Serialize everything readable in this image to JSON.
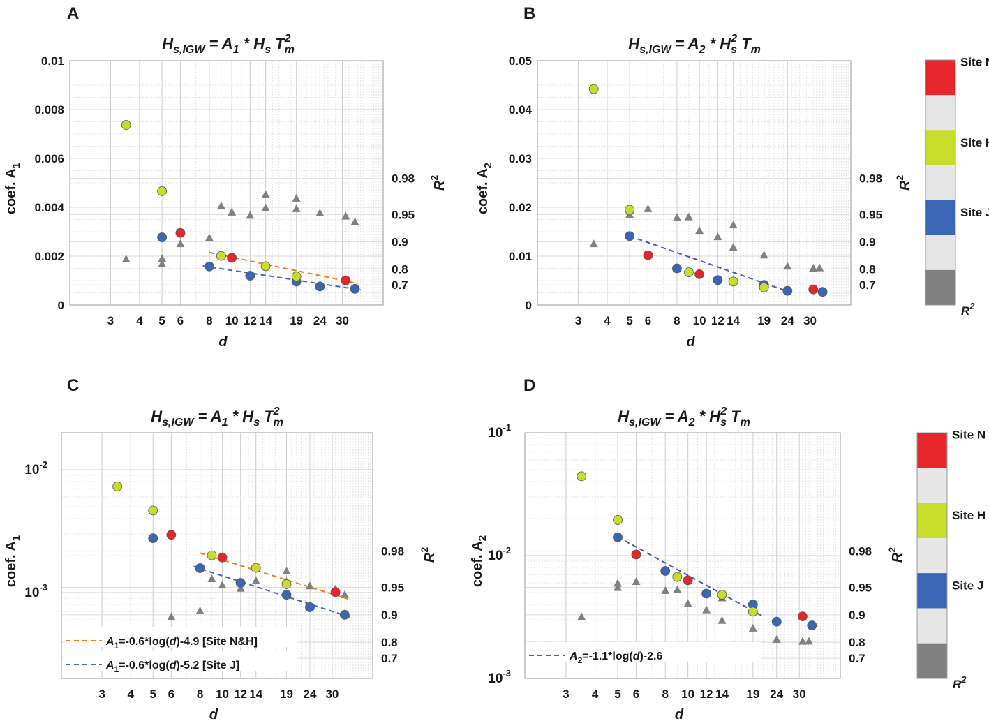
{
  "colors": {
    "site_n": "#e6262b",
    "site_h": "#c8dc2a",
    "site_j": "#3a66b5",
    "r2": "#808080",
    "fit_nh": "#f07d1a",
    "fit_j": "#4a62b8",
    "fit_d": "#5050b0",
    "cb_gap": "#e6e6e6"
  },
  "colorbar": {
    "labels": [
      "Site N",
      "Site H",
      "Site J"
    ],
    "r2_label": "R",
    "r2_sup": "2"
  },
  "chart_data": [
    {
      "id": "A",
      "letter": "A",
      "type": "scatter",
      "title": {
        "lhs": "H",
        "lhs_sub": "s,IGW",
        "eq": " = A",
        "eq_sub": "1",
        "rhs": " * H",
        "rhs_sub": "s",
        "rhs2": " T",
        "rhs2_sup": "2",
        "rhs2_sub": "m"
      },
      "xscale": "log",
      "xlim": [
        2,
        45
      ],
      "xticks": [
        3,
        4,
        5,
        6,
        8,
        10,
        12,
        14,
        19,
        24,
        30
      ],
      "xtick_labels": [
        "3",
        "4",
        "5",
        "6",
        "8",
        "10",
        "12",
        "14",
        "19",
        "24",
        "30"
      ],
      "xlabel": "d",
      "yscale": "linear",
      "ylim": [
        0,
        0.01
      ],
      "yticks": [
        0,
        0.002,
        0.004,
        0.006,
        0.008,
        0.01
      ],
      "ytick_labels": [
        "0",
        "0.002",
        "0.004",
        "0.006",
        "0.008",
        "0.01"
      ],
      "ylabel": "coef. A",
      "ylabel_sub": "1",
      "r2_ticks": [
        0.7,
        0.8,
        0.9,
        0.95,
        0.98
      ],
      "r2_tick_labels": [
        "0.7",
        "0.8",
        "0.9",
        "0.95",
        "0.98"
      ],
      "r2_label": "R",
      "r2_label_sup": "2",
      "r2_axis": {
        "min": 0.5,
        "max": 1.0,
        "scale": "neglog"
      },
      "series": [
        {
          "name": "Site N",
          "x": [
            6,
            10,
            31
          ],
          "y": [
            0.00295,
            0.00193,
            0.00101
          ]
        },
        {
          "name": "Site H",
          "x": [
            3.5,
            5,
            9,
            14,
            19
          ],
          "y": [
            0.00737,
            0.00466,
            0.00201,
            0.00159,
            0.00117
          ]
        },
        {
          "name": "Site J",
          "x": [
            5,
            8,
            12,
            19,
            24,
            34
          ],
          "y": [
            0.00277,
            0.00158,
            0.0012,
            0.00096,
            0.00076,
            0.00066
          ]
        }
      ],
      "r2": {
        "x": [
          3.5,
          5,
          5,
          6,
          8,
          9,
          10,
          12,
          14,
          14,
          19,
          19,
          24,
          31,
          34
        ],
        "y": [
          0.845,
          0.825,
          0.847,
          0.895,
          0.91,
          0.96,
          0.953,
          0.949,
          0.97,
          0.958,
          0.967,
          0.957,
          0.952,
          0.948,
          0.94
        ]
      },
      "fits": [
        {
          "name": "Site N&H",
          "x": [
            8,
            35
          ],
          "y": [
            0.00215,
            0.00088
          ],
          "color_key": "fit_nh"
        },
        {
          "name": "Site J",
          "x": [
            7.5,
            36
          ],
          "y": [
            0.0016,
            0.00062
          ],
          "color_key": "fit_j"
        }
      ],
      "legend": []
    },
    {
      "id": "B",
      "letter": "B",
      "type": "scatter",
      "title": {
        "lhs": "H",
        "lhs_sub": "s,IGW",
        "eq": " = A",
        "eq_sub": "2",
        "rhs": " * H",
        "rhs_sup": "2",
        "rhs_sub": "s",
        "rhs2": " T",
        "rhs2_sub": "m"
      },
      "xscale": "log",
      "xlim": [
        2,
        45
      ],
      "xticks": [
        3,
        4,
        5,
        6,
        8,
        10,
        12,
        14,
        19,
        24,
        30
      ],
      "xtick_labels": [
        "3",
        "4",
        "5",
        "6",
        "8",
        "10",
        "12",
        "14",
        "19",
        "24",
        "30"
      ],
      "xlabel": "d",
      "yscale": "linear",
      "ylim": [
        0,
        0.05
      ],
      "yticks": [
        0,
        0.01,
        0.02,
        0.03,
        0.04,
        0.05
      ],
      "ytick_labels": [
        "0",
        "0.01",
        "0.02",
        "0.03",
        "0.04",
        "0.05"
      ],
      "ylabel": "coef. A",
      "ylabel_sub": "2",
      "r2_ticks": [
        0.7,
        0.8,
        0.9,
        0.95,
        0.98
      ],
      "r2_tick_labels": [
        "0.7",
        "0.8",
        "0.9",
        "0.95",
        "0.98"
      ],
      "r2_label": "R",
      "r2_label_sup": "2",
      "r2_axis": {
        "min": 0.5,
        "max": 1.0,
        "scale": "neglog"
      },
      "series": [
        {
          "name": "Site N",
          "x": [
            6,
            10,
            31
          ],
          "y": [
            0.0102,
            0.0063,
            0.0032
          ]
        },
        {
          "name": "Site H",
          "x": [
            3.5,
            5,
            9,
            14,
            19
          ],
          "y": [
            0.0442,
            0.0195,
            0.0067,
            0.0048,
            0.0036
          ]
        },
        {
          "name": "Site J",
          "x": [
            5,
            8,
            12,
            19,
            24,
            34
          ],
          "y": [
            0.0141,
            0.0075,
            0.0051,
            0.0041,
            0.0029,
            0.0027
          ]
        }
      ],
      "r2": {
        "x": [
          3.5,
          5,
          5,
          6,
          8,
          9,
          10,
          12,
          14,
          14,
          19,
          24,
          31,
          33
        ],
        "y": [
          0.895,
          0.95,
          0.955,
          0.957,
          0.946,
          0.947,
          0.925,
          0.912,
          0.935,
          0.885,
          0.86,
          0.814,
          0.805,
          0.806
        ]
      },
      "fits": [
        {
          "name": "Site J",
          "x": [
            5,
            24
          ],
          "y": [
            0.0141,
            0.0028
          ],
          "color_key": "fit_d"
        }
      ],
      "legend": []
    },
    {
      "id": "C",
      "letter": "C",
      "type": "scatter",
      "title": {
        "lhs": "H",
        "lhs_sub": "s,IGW",
        "eq": " = A",
        "eq_sub": "1",
        "rhs": " * H",
        "rhs_sub": "s",
        "rhs2": " T",
        "rhs2_sup": "2",
        "rhs2_sub": "m"
      },
      "xscale": "log",
      "xlim": [
        2,
        45
      ],
      "xticks": [
        3,
        4,
        5,
        6,
        8,
        10,
        12,
        14,
        19,
        24,
        30
      ],
      "xtick_labels": [
        "3",
        "4",
        "5",
        "6",
        "8",
        "10",
        "12",
        "14",
        "19",
        "24",
        "30"
      ],
      "xlabel": "d",
      "yscale": "log",
      "ylim": [
        0.0002,
        0.02
      ],
      "yticks": [
        0.001,
        0.01
      ],
      "ytick_labels": [
        [
          "10",
          "-3"
        ],
        [
          "10",
          "-2"
        ]
      ],
      "ylabel": "coef. A",
      "ylabel_sub": "1",
      "r2_ticks": [
        0.7,
        0.8,
        0.9,
        0.95,
        0.98
      ],
      "r2_tick_labels": [
        "0.7",
        "0.8",
        "0.9",
        "0.95",
        "0.98"
      ],
      "r2_label": "R",
      "r2_label_sup": "2",
      "r2_axis": {
        "min": 0.5,
        "max": 1.0,
        "scale": "neglog"
      },
      "series": [
        {
          "name": "Site N",
          "x": [
            6,
            10,
            31
          ],
          "y": [
            0.00295,
            0.00193,
            0.00101
          ]
        },
        {
          "name": "Site H",
          "x": [
            3.5,
            5,
            9,
            14,
            19
          ],
          "y": [
            0.0073,
            0.00466,
            0.00201,
            0.00159,
            0.00117
          ]
        },
        {
          "name": "Site J",
          "x": [
            5,
            8,
            12,
            19,
            24,
            34
          ],
          "y": [
            0.00277,
            0.00158,
            0.0012,
            0.00096,
            0.00076,
            0.00066
          ]
        }
      ],
      "r2": {
        "x": [
          3.5,
          5,
          5,
          6,
          8,
          9,
          10,
          12,
          14,
          14,
          19,
          19,
          24,
          31,
          34
        ],
        "y": [
          0.845,
          0.825,
          0.847,
          0.895,
          0.91,
          0.96,
          0.953,
          0.949,
          0.97,
          0.958,
          0.967,
          0.957,
          0.952,
          0.948,
          0.94
        ]
      },
      "fits": [
        {
          "name": "Site N&H",
          "x": [
            8,
            35
          ],
          "y": [
            0.0021,
            0.00089
          ],
          "color_key": "fit_nh"
        },
        {
          "name": "Site J",
          "x": [
            7.5,
            36
          ],
          "y": [
            0.00163,
            0.00063
          ],
          "color_key": "fit_j"
        }
      ],
      "legend": [
        {
          "var": "A",
          "sub": "1",
          "text": "=-0.6*log(",
          "d": "d",
          "rest": ")-4.9 [Site N&H]",
          "color_key": "fit_nh"
        },
        {
          "var": "A",
          "sub": "1",
          "text": "=-0.6*log(",
          "d": "d",
          "rest": ")-5.2 [Site J]",
          "color_key": "fit_j"
        }
      ]
    },
    {
      "id": "D",
      "letter": "D",
      "type": "scatter",
      "title": {
        "lhs": "H",
        "lhs_sub": "s,IGW",
        "eq": " = A",
        "eq_sub": "2",
        "rhs": " * H",
        "rhs_sup": "2",
        "rhs_sub": "s",
        "rhs2": " T",
        "rhs2_sub": "m"
      },
      "xscale": "log",
      "xlim": [
        2,
        45
      ],
      "xticks": [
        3,
        4,
        5,
        6,
        8,
        10,
        12,
        14,
        19,
        24,
        30
      ],
      "xtick_labels": [
        "3",
        "4",
        "5",
        "6",
        "8",
        "10",
        "12",
        "14",
        "19",
        "24",
        "30"
      ],
      "xlabel": "d",
      "yscale": "log",
      "ylim": [
        0.001,
        0.1
      ],
      "yticks": [
        0.001,
        0.01,
        0.1
      ],
      "ytick_labels": [
        [
          "10",
          "-3"
        ],
        [
          "10",
          "-2"
        ],
        [
          "10",
          "-1"
        ]
      ],
      "ylabel": "coef. A",
      "ylabel_sub": "2",
      "r2_ticks": [
        0.7,
        0.8,
        0.9,
        0.95,
        0.98
      ],
      "r2_tick_labels": [
        "0.7",
        "0.8",
        "0.9",
        "0.95",
        "0.98"
      ],
      "r2_label": "R",
      "r2_label_sup": "2",
      "r2_axis": {
        "min": 0.5,
        "max": 1.0,
        "scale": "neglog"
      },
      "series": [
        {
          "name": "Site N",
          "x": [
            6,
            10,
            14,
            31
          ],
          "y": [
            0.0102,
            0.0063,
            0.0048,
            0.0032
          ]
        },
        {
          "name": "Site H",
          "x": [
            3.5,
            5,
            9,
            14,
            19
          ],
          "y": [
            0.0442,
            0.0195,
            0.0067,
            0.0048,
            0.0035
          ]
        },
        {
          "name": "Site J",
          "x": [
            5,
            8,
            12,
            19,
            24,
            34
          ],
          "y": [
            0.0141,
            0.0075,
            0.0049,
            0.004,
            0.0029,
            0.0027
          ]
        }
      ],
      "r2": {
        "x": [
          3.5,
          5,
          5,
          6,
          8,
          9,
          10,
          12,
          14,
          14,
          19,
          24,
          31,
          33
        ],
        "y": [
          0.895,
          0.95,
          0.955,
          0.957,
          0.946,
          0.947,
          0.925,
          0.912,
          0.935,
          0.885,
          0.86,
          0.814,
          0.805,
          0.806
        ]
      },
      "fits": [
        {
          "name": "Site J",
          "x": [
            5,
            21
          ],
          "y": [
            0.0142,
            0.0032
          ],
          "color_key": "fit_d"
        }
      ],
      "legend": [
        {
          "var": "A",
          "sub": "2",
          "text": "=-1.1*log(",
          "d": "d",
          "rest": ")-2.6",
          "color_key": "fit_d"
        }
      ]
    }
  ]
}
